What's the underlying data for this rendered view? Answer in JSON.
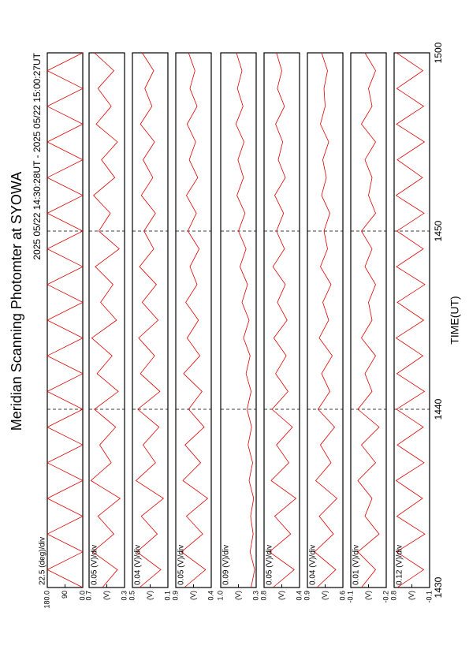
{
  "chart_data": {
    "type": "line",
    "title": "Meridian Scanning Photomter at SYOWA",
    "subtitle": "2025 05/22 14:30:28UT - 2025 05/22 15:00:27UT",
    "xlabel": "TIME(UT)",
    "xlim": [
      0,
      30
    ],
    "xticks": [
      {
        "value": 0,
        "label": "1430"
      },
      {
        "value": 10,
        "label": "1440"
      },
      {
        "value": 20,
        "label": "1450"
      },
      {
        "value": 30,
        "label": "1500"
      }
    ],
    "grid": true,
    "x": [
      0,
      1,
      2,
      3,
      4,
      5,
      6,
      7,
      8,
      9,
      10,
      11,
      12,
      13,
      14,
      15,
      16,
      17,
      18,
      19,
      20,
      21,
      22,
      23,
      24,
      25,
      26,
      27,
      28,
      29,
      30
    ],
    "panels": [
      {
        "label": "22.5 (deg)/div",
        "ylim": [
          0,
          180
        ],
        "yticks": [
          {
            "value": 0,
            "label": "0.0"
          },
          90,
          {
            "value": 180,
            "label": "180.0"
          }
        ],
        "series": [
          {
            "color": "#e00000",
            "values": [
              0,
              180,
              0,
              180,
              0,
              180,
              0,
              180,
              0,
              180,
              0,
              180,
              0,
              180,
              0,
              180,
              0,
              180,
              0,
              180,
              0,
              180,
              0,
              180,
              0,
              180,
              0,
              180,
              0,
              180,
              0
            ]
          }
        ]
      },
      {
        "label": "0.05 (V)/div",
        "ylim": [
          0.3,
          0.7
        ],
        "yticks": [
          0.3,
          {
            "value": 0.5,
            "label": "(V)"
          },
          0.7
        ],
        "series": [
          {
            "color": "#e00000",
            "values": [
              0.55,
              0.38,
              0.66,
              0.42,
              0.6,
              0.35,
              0.68,
              0.45,
              0.58,
              0.4,
              0.64,
              0.37,
              0.61,
              0.44,
              0.67,
              0.39,
              0.57,
              0.43,
              0.63,
              0.36,
              0.59,
              0.46,
              0.65,
              0.41,
              0.56,
              0.38,
              0.62,
              0.45,
              0.6,
              0.42,
              0.64
            ]
          }
        ]
      },
      {
        "label": "0.04 (V)/div",
        "ylim": [
          0.1,
          0.5
        ],
        "yticks": [
          0.1,
          {
            "value": 0.3,
            "label": "(V)"
          },
          0.5
        ],
        "series": [
          {
            "color": "#e00000",
            "values": [
              0.42,
              0.18,
              0.45,
              0.22,
              0.4,
              0.15,
              0.46,
              0.24,
              0.38,
              0.2,
              0.44,
              0.19,
              0.41,
              0.25,
              0.43,
              0.21,
              0.39,
              0.23,
              0.42,
              0.26,
              0.37,
              0.24,
              0.4,
              0.27,
              0.38,
              0.25,
              0.41,
              0.28,
              0.36,
              0.26,
              0.39
            ]
          }
        ]
      },
      {
        "label": "0.05 (V)/div",
        "ylim": [
          0.4,
          0.9
        ],
        "yticks": [
          0.4,
          {
            "value": 0.65,
            "label": "(V)"
          },
          0.9
        ],
        "series": [
          {
            "color": "#e00000",
            "values": [
              0.78,
              0.48,
              0.82,
              0.52,
              0.75,
              0.45,
              0.8,
              0.55,
              0.77,
              0.5,
              0.72,
              0.53,
              0.79,
              0.56,
              0.74,
              0.58,
              0.76,
              0.6,
              0.7,
              0.57,
              0.73,
              0.61,
              0.75,
              0.59,
              0.71,
              0.62,
              0.74,
              0.6,
              0.7,
              0.63,
              0.72
            ]
          }
        ]
      },
      {
        "label": "0.09 (V)/div",
        "ylim": [
          0.3,
          1.0
        ],
        "yticks": [
          0.3,
          {
            "value": 0.65,
            "label": "(V)"
          },
          {
            "value": 1.0,
            "label": "1.0"
          }
        ],
        "series": [
          {
            "color": "#e00000",
            "values": [
              0.4,
              0.33,
              0.42,
              0.36,
              0.41,
              0.35,
              0.44,
              0.37,
              0.46,
              0.39,
              0.48,
              0.4,
              0.5,
              0.42,
              0.55,
              0.44,
              0.58,
              0.47,
              0.62,
              0.5,
              0.65,
              0.52,
              0.68,
              0.55,
              0.66,
              0.54,
              0.7,
              0.56,
              0.67,
              0.58,
              0.69
            ]
          }
        ]
      },
      {
        "label": "0.05 (V)/div",
        "ylim": [
          0.4,
          0.8
        ],
        "yticks": [
          0.4,
          {
            "value": 0.6,
            "label": "(V)"
          },
          0.8
        ],
        "series": [
          {
            "color": "#e00000",
            "values": [
              0.7,
              0.46,
              0.74,
              0.5,
              0.68,
              0.44,
              0.72,
              0.52,
              0.66,
              0.48,
              0.71,
              0.53,
              0.67,
              0.55,
              0.69,
              0.54,
              0.65,
              0.56,
              0.7,
              0.57,
              0.66,
              0.58,
              0.68,
              0.56,
              0.64,
              0.59,
              0.67,
              0.57,
              0.65,
              0.6,
              0.66
            ]
          }
        ]
      },
      {
        "label": "0.04 (V)/div",
        "ylim": [
          0.6,
          0.9
        ],
        "yticks": [
          0.6,
          {
            "value": 0.75,
            "label": "(V)"
          },
          0.9
        ],
        "series": [
          {
            "color": "#e00000",
            "values": [
              0.82,
              0.66,
              0.84,
              0.68,
              0.8,
              0.65,
              0.83,
              0.7,
              0.79,
              0.67,
              0.81,
              0.71,
              0.78,
              0.69,
              0.8,
              0.72,
              0.77,
              0.7,
              0.79,
              0.73,
              0.76,
              0.71,
              0.78,
              0.74,
              0.77,
              0.72,
              0.79,
              0.75,
              0.76,
              0.73,
              0.78
            ]
          }
        ]
      },
      {
        "label": "0.01 (V)/div",
        "ylim": [
          -0.2,
          -0.1
        ],
        "yticks": [
          -0.2,
          {
            "value": -0.15,
            "label": "(V)"
          },
          -0.1
        ],
        "series": [
          {
            "color": "#e00000",
            "values": [
              -0.13,
              -0.17,
              -0.12,
              -0.18,
              -0.14,
              -0.16,
              -0.12,
              -0.17,
              -0.13,
              -0.18,
              -0.12,
              -0.16,
              -0.14,
              -0.17,
              -0.13,
              -0.16,
              -0.15,
              -0.17,
              -0.14,
              -0.16,
              -0.13,
              -0.17,
              -0.15,
              -0.16,
              -0.14,
              -0.17,
              -0.13,
              -0.16,
              -0.15,
              -0.17,
              -0.14
            ]
          }
        ]
      },
      {
        "label": "0.12 (V)/div",
        "ylim": [
          -0.1,
          0.8
        ],
        "yticks": [
          -0.1,
          {
            "value": 0.35,
            "label": "(V)"
          },
          0.8
        ],
        "series": [
          {
            "color": "#e00000",
            "values": [
              0.72,
              0.05,
              0.74,
              0.02,
              0.73,
              0.08,
              0.75,
              0.04,
              0.72,
              0.06,
              0.74,
              0.03,
              0.73,
              0.07,
              0.75,
              0.05,
              0.72,
              0.02,
              0.74,
              0.06,
              0.73,
              0.04,
              0.75,
              0.08,
              0.72,
              0.03,
              0.74,
              0.05,
              0.73,
              0.07,
              0.74
            ]
          }
        ]
      }
    ]
  }
}
